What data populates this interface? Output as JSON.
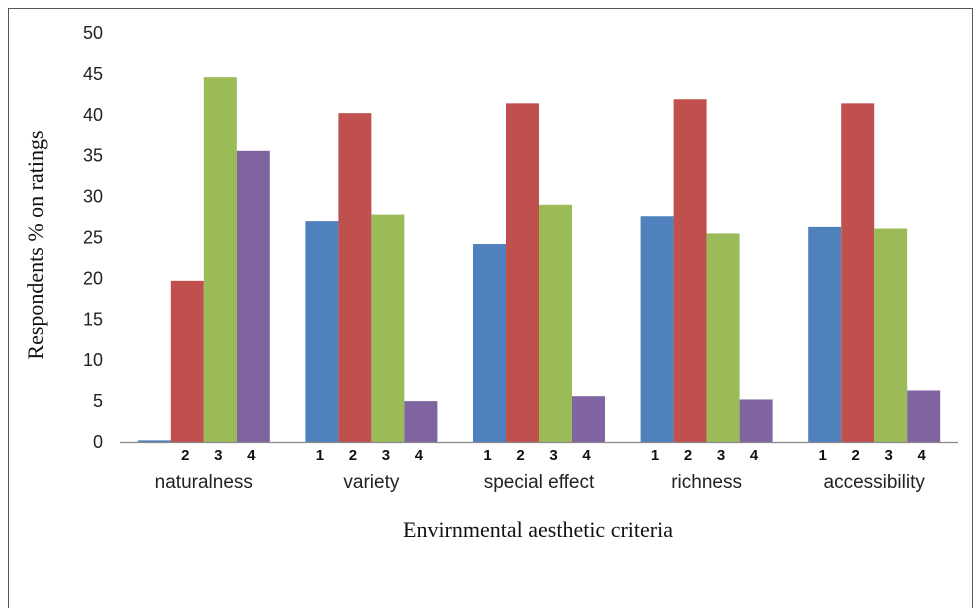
{
  "chart_data": {
    "type": "bar",
    "title": "",
    "xlabel": "Envirnmental aesthetic criteria",
    "ylabel": "Respondents % on ratings",
    "ylim": [
      0,
      50
    ],
    "yticks": [
      0,
      5,
      10,
      15,
      20,
      25,
      30,
      35,
      40,
      45,
      50
    ],
    "grid": false,
    "legend": "none",
    "categories": [
      "naturalness",
      "variety",
      "special effect",
      "richness",
      "accessibility"
    ],
    "series": [
      {
        "values": [
          0.2,
          27.0,
          24.2,
          27.6,
          26.3
        ],
        "color": "#4f81bd"
      },
      {
        "values": [
          19.7,
          40.2,
          41.4,
          41.9,
          41.4
        ],
        "color": "#c0504d"
      },
      {
        "values": [
          44.6,
          27.8,
          29.0,
          25.5,
          26.1
        ],
        "color": "#9bbb59"
      },
      {
        "values": [
          35.6,
          5.0,
          5.6,
          5.2,
          6.3
        ],
        "color": "#8064a2"
      }
    ],
    "bar_number_labels": [
      [
        "2",
        "3",
        "4"
      ],
      [
        "1",
        "2",
        "3",
        "4"
      ],
      [
        "1",
        "2",
        "3",
        "4"
      ],
      [
        "1",
        "2",
        "3",
        "4"
      ],
      [
        "1",
        "2",
        "3",
        "4"
      ]
    ]
  }
}
